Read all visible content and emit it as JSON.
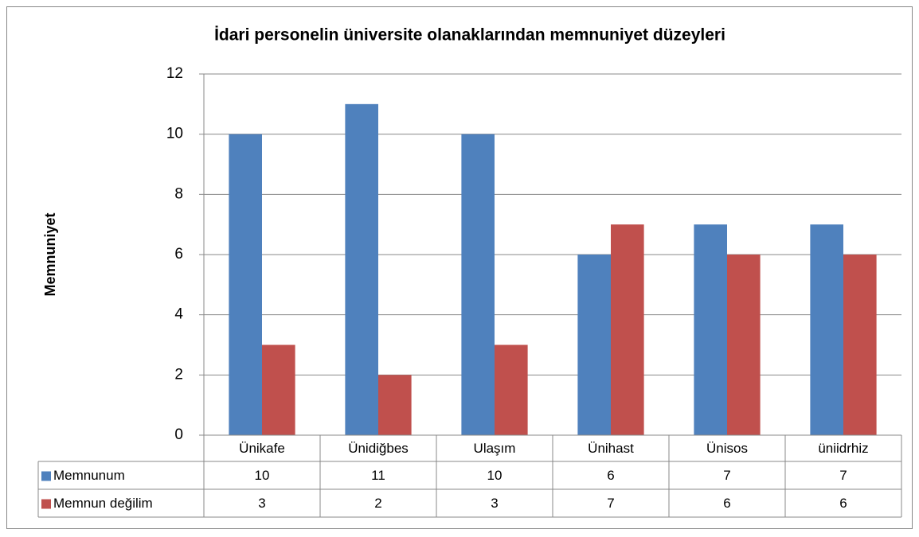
{
  "chart_data": {
    "type": "bar",
    "title": "İdari personelin üniversite olanaklarından memnuniyet düzeyleri",
    "y_label": "Memnuniyet",
    "categories": [
      "Ünikafe",
      "Ünidiğbes",
      "Ulaşım",
      "Ünihast",
      "Ünisos",
      "üniidrhiz"
    ],
    "series": [
      {
        "name": "Memnunum",
        "color": "#4f81bd",
        "values": [
          10,
          11,
          10,
          6,
          7,
          7
        ]
      },
      {
        "name": "Memnun değilim",
        "color": "#c0504d",
        "values": [
          3,
          2,
          3,
          7,
          6,
          6
        ]
      }
    ],
    "ylim": [
      0,
      12
    ],
    "yticks": [
      0,
      2,
      4,
      6,
      8,
      10,
      12
    ],
    "grid": true,
    "data_table": true
  }
}
